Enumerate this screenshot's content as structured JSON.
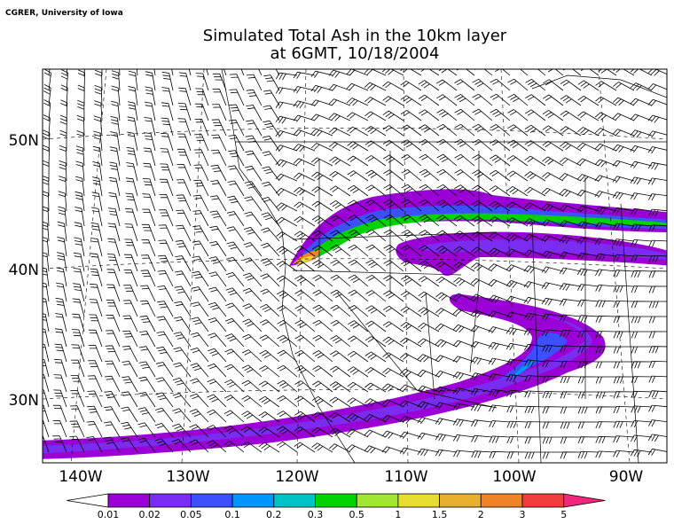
{
  "credit": "CGRER, University of Iowa",
  "title": [
    "Simulated Total Ash in the 10km layer",
    "at 6GMT, 10/18/2004"
  ],
  "lat_labels": [
    "50N",
    "40N",
    "30N"
  ],
  "lon_labels": [
    "140W",
    "130W",
    "120W",
    "110W",
    "100W",
    "90W"
  ],
  "colorbar": {
    "labels": [
      "0.01",
      "0.02",
      "0.05",
      "0.1",
      "0.2",
      "0.3",
      "0.5",
      "1",
      "1.5",
      "2",
      "3",
      "5"
    ],
    "colors": [
      "#ffffff",
      "#9b00d6",
      "#7a2cf0",
      "#3c50ff",
      "#0096ff",
      "#00c3c8",
      "#00d200",
      "#a0e632",
      "#e6dc32",
      "#e6af2d",
      "#f08228",
      "#f03c3c",
      "#f0287d"
    ]
  }
}
